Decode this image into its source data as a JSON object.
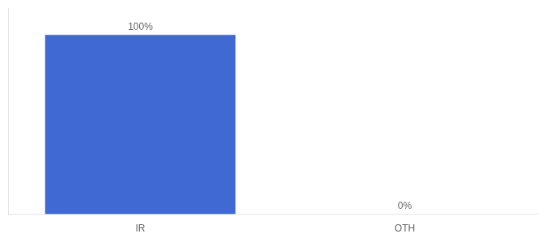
{
  "chart_data": {
    "type": "bar",
    "categories": [
      "IR",
      "OTH"
    ],
    "values": [
      100,
      0
    ],
    "value_labels": [
      "100%",
      "0%"
    ],
    "color": "#4169d4",
    "ylim": [
      0,
      115
    ],
    "grid": false,
    "data_labels": true,
    "tick_labels": "x"
  }
}
